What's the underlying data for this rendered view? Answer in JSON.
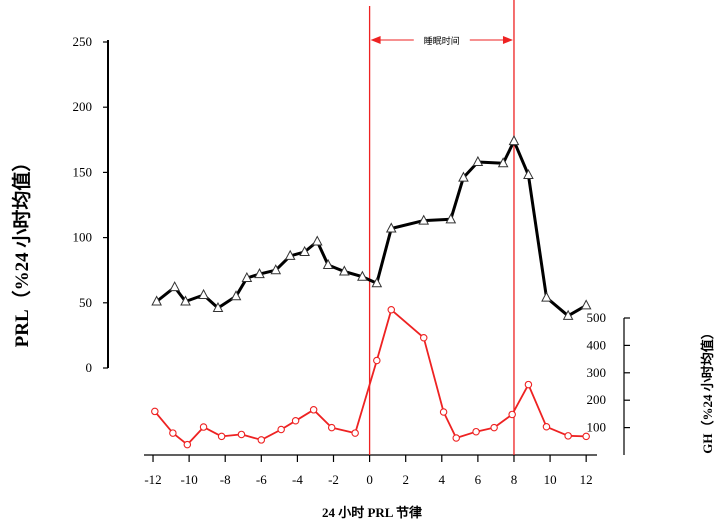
{
  "chart_data": {
    "type": "line",
    "xlabel": "24 小时 PRL 节律",
    "ylabel_left": "PRL（%24 小时均值）",
    "ylabel_right": "GH（%24 小时均值）",
    "annotation": "睡眠时间",
    "sleep_window": [
      0,
      8
    ],
    "x_ticks": [
      -12,
      -10,
      -8,
      -6,
      -4,
      -2,
      0,
      2,
      4,
      6,
      8,
      10,
      12
    ],
    "x_tick_labels": [
      "-12",
      "-10",
      "-8",
      "-6",
      "-4",
      "-2",
      "0",
      "2",
      "4",
      "6",
      "8",
      "10",
      "12"
    ],
    "xlim": [
      -12.5,
      12.6
    ],
    "left_axis": {
      "ylim": [
        0,
        250
      ],
      "ticks": [
        0,
        50,
        100,
        150,
        200,
        250
      ],
      "tick_labels": [
        "0",
        "50",
        "100",
        "150",
        "200",
        "250"
      ]
    },
    "right_axis": {
      "ylim": [
        0,
        500
      ],
      "ticks": [
        100,
        200,
        300,
        400,
        500
      ],
      "tick_labels": [
        "100",
        "200",
        "300",
        "400",
        "500"
      ]
    },
    "series": [
      {
        "axis": "left",
        "color": "#000000",
        "marker": "triangle",
        "x": [
          -11.8,
          -10.8,
          -10.2,
          -9.2,
          -8.4,
          -7.4,
          -6.8,
          -6.1,
          -5.2,
          -4.4,
          -3.6,
          -2.9,
          -2.3,
          -1.4,
          -0.4,
          0.4,
          1.2,
          3.0,
          4.5,
          5.2,
          6.0,
          7.4,
          8.0,
          8.8,
          9.8,
          11.0,
          12.0
        ],
        "y": [
          51,
          62,
          51,
          56,
          46,
          55,
          69,
          72,
          75,
          86,
          89,
          97,
          79,
          74,
          70,
          65,
          107,
          113,
          114,
          146,
          158,
          157,
          174,
          148,
          54,
          40,
          48
        ]
      },
      {
        "axis": "right",
        "color": "#ee2222",
        "marker": "circle",
        "x": [
          -11.9,
          -10.9,
          -10.1,
          -9.2,
          -8.2,
          -7.1,
          -6.0,
          -4.9,
          -4.1,
          -3.1,
          -2.1,
          -0.8,
          0.4,
          1.2,
          3.0,
          4.1,
          4.8,
          5.9,
          6.9,
          7.9,
          8.8,
          9.8,
          11.0,
          12.0
        ],
        "y": [
          159,
          80,
          38,
          102,
          68,
          75,
          55,
          93,
          125,
          165,
          100,
          80,
          345,
          530,
          428,
          157,
          62,
          85,
          100,
          148,
          257,
          103,
          70,
          68
        ]
      }
    ]
  }
}
